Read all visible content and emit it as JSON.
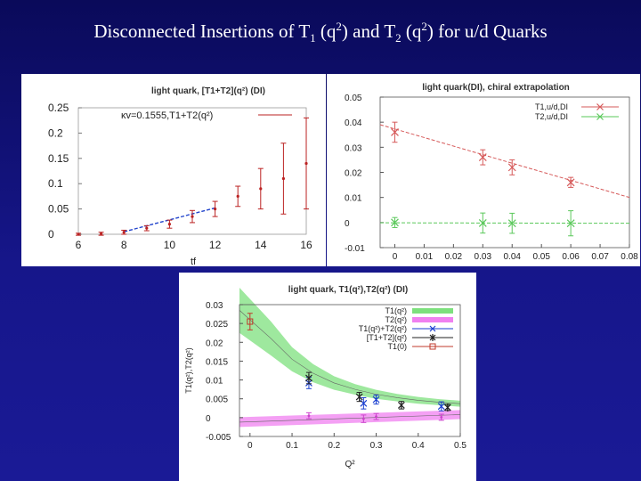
{
  "slide": {
    "title_pre": "Disconnected Insertions of T",
    "title_sub1": "1",
    "title_mid1": " (q",
    "title_sup1": "2",
    "title_mid2": ") and T",
    "title_sub2": "2",
    "title_mid3": " (q",
    "title_sup2": "2",
    "title_end": ") for u/d  Quarks"
  },
  "chart_data": [
    {
      "type": "scatter",
      "title": "light quark, [T1+T2](q²) (DI)",
      "legend": "κv=0.1555,T1+T2(q²)",
      "xlabel": "tf",
      "xlim": [
        6,
        16
      ],
      "ylim": [
        0,
        0.25
      ],
      "xticks": [
        "6",
        "8",
        "10",
        "12",
        "14",
        "16"
      ],
      "yticks": [
        "0",
        "0.05",
        "0.1",
        "0.15",
        "0.2",
        "0.25"
      ],
      "points": [
        {
          "x": 6,
          "y": 0.0,
          "err": 0.002
        },
        {
          "x": 7,
          "y": 0.001,
          "err": 0.003
        },
        {
          "x": 8,
          "y": 0.004,
          "err": 0.004
        },
        {
          "x": 9,
          "y": 0.012,
          "err": 0.005
        },
        {
          "x": 10,
          "y": 0.02,
          "err": 0.008
        },
        {
          "x": 11,
          "y": 0.035,
          "err": 0.012
        },
        {
          "x": 12,
          "y": 0.05,
          "err": 0.015
        },
        {
          "x": 13,
          "y": 0.075,
          "err": 0.02
        },
        {
          "x": 14,
          "y": 0.09,
          "err": 0.04
        },
        {
          "x": 15,
          "y": 0.11,
          "err": 0.07
        },
        {
          "x": 16,
          "y": 0.14,
          "err": 0.09
        }
      ],
      "fit_line": {
        "x": [
          8,
          12
        ],
        "y": [
          0.005,
          0.052
        ]
      }
    },
    {
      "type": "scatter",
      "title": "light quark(DI), chiral extrapolation",
      "xlim": [
        -0.005,
        0.08
      ],
      "ylim": [
        -0.01,
        0.05
      ],
      "xticks": [
        "0",
        "0.01",
        "0.02",
        "0.03",
        "0.04",
        "0.05",
        "0.06",
        "0.07",
        "0.08"
      ],
      "yticks": [
        "-0.01",
        "0",
        "0.01",
        "0.02",
        "0.03",
        "0.04",
        "0.05"
      ],
      "series": [
        {
          "name": "T1,u/d,DI",
          "color": "#d65a5a",
          "x": [
            0,
            0.03,
            0.04,
            0.06
          ],
          "y": [
            0.036,
            0.026,
            0.022,
            0.016
          ],
          "err": [
            0.004,
            0.003,
            0.003,
            0.002
          ],
          "line": {
            "x": [
              -0.005,
              0.08
            ],
            "y": [
              0.039,
              0.01
            ]
          }
        },
        {
          "name": "T2,u/d,DI",
          "color": "#5ac85a",
          "x": [
            0,
            0.03,
            0.04,
            0.06
          ],
          "y": [
            0.0,
            -0.0002,
            -0.0003,
            -0.0003
          ],
          "err": [
            0.002,
            0.004,
            0.004,
            0.005
          ],
          "line": {
            "x": [
              -0.005,
              0.08
            ],
            "y": [
              -0.0001,
              -0.0003
            ]
          }
        }
      ]
    },
    {
      "type": "scatter",
      "title": "light quark, T1(q²),T2(q²) (DI)",
      "xlabel": "Q²",
      "ylabel": "T1(q²),T2(q²)",
      "xlim": [
        -0.025,
        0.5
      ],
      "ylim": [
        -0.005,
        0.03
      ],
      "xticks": [
        "0",
        "0.1",
        "0.2",
        "0.3",
        "0.4",
        "0.5"
      ],
      "yticks": [
        "-0.005",
        "0",
        "0.005",
        "0.01",
        "0.015",
        "0.02",
        "0.025",
        "0.03"
      ],
      "legend": [
        "T1(q²)",
        "T2(q²)",
        "T1(q²)+T2(q²)",
        "[T1+T2](q²)",
        "T1(0)"
      ],
      "colors": {
        "t1_band": "#7de07d",
        "t2_band": "#f080f0",
        "blue": "#1a3fd0",
        "black": "#222222",
        "red": "#c0392b"
      },
      "t1_band": {
        "x": [
          -0.025,
          0.05,
          0.1,
          0.15,
          0.2,
          0.25,
          0.3,
          0.35,
          0.4,
          0.45,
          0.5
        ],
        "center": [
          0.0285,
          0.021,
          0.0155,
          0.0118,
          0.0092,
          0.0075,
          0.0062,
          0.0053,
          0.0046,
          0.0041,
          0.0037
        ],
        "half_width": [
          0.006,
          0.0045,
          0.0032,
          0.0024,
          0.0018,
          0.0014,
          0.0012,
          0.001,
          0.0009,
          0.0008,
          0.0008
        ]
      },
      "t2_band": {
        "x": [
          -0.025,
          0.5
        ],
        "center": [
          -0.0012,
          0.0008
        ],
        "half_width": [
          0.0013,
          0.0012
        ]
      },
      "sum_points": {
        "x": [
          0.14,
          0.27,
          0.3,
          0.455
        ],
        "y": [
          0.0092,
          0.0038,
          0.0048,
          0.003
        ],
        "err": [
          0.0015,
          0.0015,
          0.0012,
          0.0012
        ]
      },
      "combo_points": {
        "x": [
          0.14,
          0.26,
          0.36,
          0.47
        ],
        "y": [
          0.0105,
          0.0055,
          0.0033,
          0.0027
        ],
        "err": [
          0.0015,
          0.0012,
          0.001,
          0.0008
        ]
      },
      "t2_points": {
        "x": [
          0.14,
          0.27,
          0.3,
          0.455
        ],
        "y": [
          0.0005,
          -0.0003,
          0.0003,
          0.0001
        ],
        "err": [
          0.0008,
          0.001,
          0.0008,
          0.0008
        ]
      },
      "t10_point": {
        "x": [
          0
        ],
        "y": [
          0.0255
        ],
        "err": [
          0.0022
        ]
      }
    }
  ]
}
